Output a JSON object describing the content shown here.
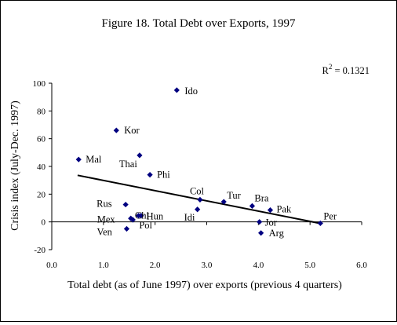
{
  "chart_data": {
    "type": "scatter",
    "title": "Figure 18. Total Debt over Exports, 1997",
    "xlabel": "Total debt (as of June 1997) over exports (previous 4 quarters)",
    "ylabel": "Crisis index (July-Dec. 1997)",
    "xlim": [
      0,
      6
    ],
    "ylim": [
      -20,
      100
    ],
    "xticks": [
      "0.0",
      "1.0",
      "2.0",
      "3.0",
      "4.0",
      "5.0",
      "6.0"
    ],
    "yticks": [
      "-20",
      "0",
      "20",
      "40",
      "60",
      "80",
      "100"
    ],
    "r2_base": "R",
    "r2_exp": "2",
    "r2_value": " = 0.1321",
    "grid": false,
    "marker_color": "#000080",
    "trendline": {
      "x": [
        0.5,
        5.2
      ],
      "y": [
        33.6,
        -1.1
      ]
    },
    "points": [
      {
        "label": "Ido",
        "x": 2.42,
        "y": 95
      },
      {
        "label": "Kor",
        "x": 1.25,
        "y": 66
      },
      {
        "label": "Mal",
        "x": 0.52,
        "y": 45
      },
      {
        "label": "Thai",
        "x": 1.7,
        "y": 48
      },
      {
        "label": "Phi",
        "x": 1.9,
        "y": 34
      },
      {
        "label": "Rus",
        "x": 1.43,
        "y": 12.5
      },
      {
        "label": "Chi",
        "x": 1.73,
        "y": 4.5
      },
      {
        "label": "Mex",
        "x": 1.53,
        "y": 2.5
      },
      {
        "label": "Hun",
        "x": 1.68,
        "y": 4.5
      },
      {
        "label": "Pol",
        "x": 1.57,
        "y": 1.5
      },
      {
        "label": "Ven",
        "x": 1.45,
        "y": -5
      },
      {
        "label": "Col",
        "x": 2.87,
        "y": 16
      },
      {
        "label": "Idi",
        "x": 2.82,
        "y": 9
      },
      {
        "label": "Tur",
        "x": 3.33,
        "y": 14.5
      },
      {
        "label": "Bra",
        "x": 3.88,
        "y": 11.5
      },
      {
        "label": "Pak",
        "x": 4.23,
        "y": 8.5
      },
      {
        "label": "Jor",
        "x": 4.02,
        "y": 0
      },
      {
        "label": "Arg",
        "x": 4.05,
        "y": -8
      },
      {
        "label": "Per",
        "x": 5.2,
        "y": -1
      }
    ]
  }
}
